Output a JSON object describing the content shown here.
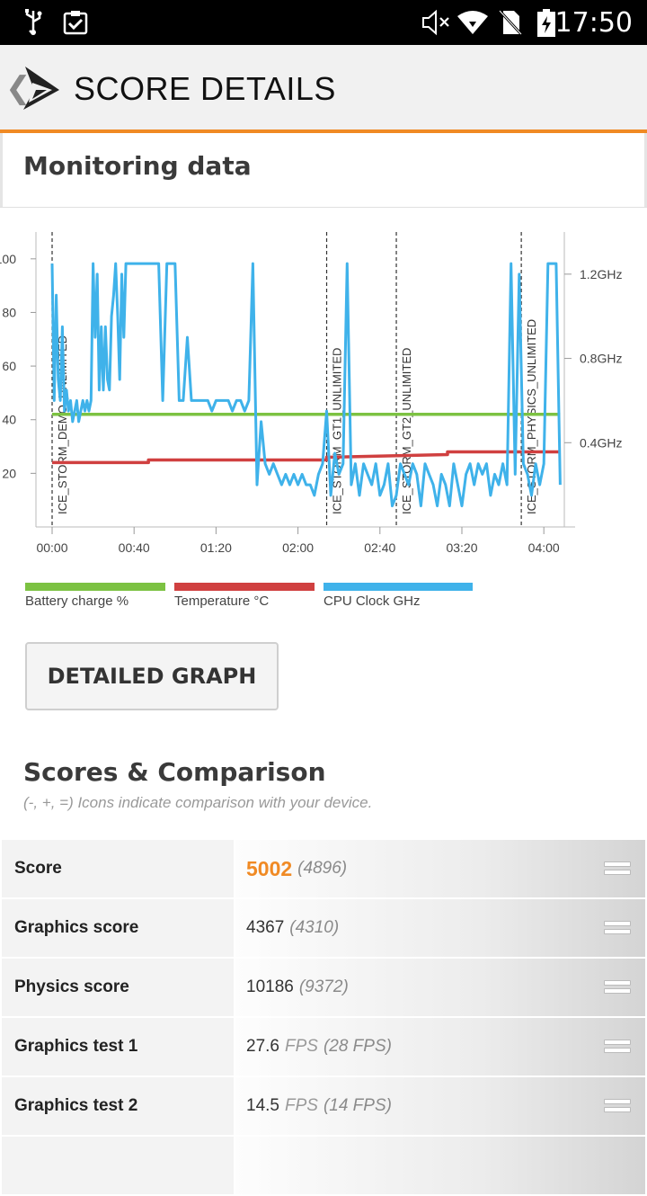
{
  "statusbar": {
    "time": "17:50",
    "icons": [
      "usb-icon",
      "clipboard-check-icon",
      "mute-icon",
      "wifi-icon",
      "no-sim-icon",
      "battery-charging-icon"
    ]
  },
  "appbar": {
    "title": "SCORE DETAILS",
    "back_icon": "chevron-left-icon",
    "logo_icon": "3dmark-logo-icon"
  },
  "monitoring": {
    "heading": "Monitoring data",
    "legend": [
      {
        "label": "Battery charge %",
        "color": "#7cc242"
      },
      {
        "label": "Temperature °C",
        "color": "#d04040"
      },
      {
        "label": "CPU Clock GHz",
        "color": "#3fb2ea"
      }
    ],
    "detailed_graph_button": "DETAILED GRAPH"
  },
  "chart_data": {
    "type": "line",
    "x_ticks": [
      "00:00",
      "00:40",
      "01:20",
      "02:00",
      "02:40",
      "03:20",
      "04:00"
    ],
    "x_range_seconds": [
      0,
      250
    ],
    "y_left_ticks": [
      "100",
      "80",
      "60",
      "40",
      "20"
    ],
    "y_left_range": [
      0,
      110
    ],
    "y_right_ticks": [
      "1.2GHz",
      "0.8GHz",
      "0.4GHz"
    ],
    "y_right_range": [
      0,
      1.4
    ],
    "markers": [
      {
        "t": 0,
        "label": "ICE_STORM_DEMO_UNLIMITED"
      },
      {
        "t": 134,
        "label": "ICE_STORM_GT1_UNLIMITED"
      },
      {
        "t": 168,
        "label": "ICE_STORM_GT2_UNLIMITED"
      },
      {
        "t": 229,
        "label": "ICE_STORM_PHYSICS_UNLIMITED"
      }
    ],
    "series": [
      {
        "name": "Battery charge %",
        "color": "#7cc242",
        "x": [
          0,
          248
        ],
        "y": [
          42,
          42
        ]
      },
      {
        "name": "Temperature °C",
        "color": "#d04040",
        "x": [
          0,
          47,
          47,
          134,
          134,
          193,
          193,
          248
        ],
        "y": [
          24,
          24,
          25,
          25,
          26,
          27,
          28,
          28
        ]
      },
      {
        "name": "CPU Clock GHz",
        "color": "#3fb2ea",
        "x": [
          0,
          1,
          2,
          3,
          4,
          5,
          6,
          7,
          8,
          9,
          10,
          11,
          12,
          13,
          14,
          15,
          16,
          17,
          18,
          19,
          20,
          21,
          22,
          23,
          24,
          25,
          26,
          27,
          28,
          29,
          30,
          31,
          32,
          33,
          34,
          35,
          36,
          37,
          38,
          39,
          40,
          41,
          42,
          44,
          46,
          48,
          50,
          52,
          54,
          56,
          58,
          60,
          62,
          64,
          66,
          68,
          70,
          72,
          74,
          76,
          78,
          80,
          82,
          84,
          86,
          88,
          90,
          92,
          94,
          96,
          98,
          100,
          102,
          104,
          106,
          108,
          110,
          112,
          114,
          116,
          118,
          120,
          122,
          124,
          126,
          128,
          130,
          132,
          134,
          136,
          138,
          140,
          142,
          144,
          146,
          148,
          150,
          152,
          154,
          156,
          158,
          160,
          162,
          164,
          166,
          168,
          170,
          172,
          174,
          176,
          178,
          180,
          182,
          184,
          186,
          188,
          190,
          192,
          194,
          196,
          198,
          200,
          202,
          204,
          206,
          208,
          210,
          212,
          214,
          216,
          218,
          220,
          222,
          224,
          226,
          228,
          230,
          232,
          234,
          236,
          238,
          240,
          242,
          244,
          246,
          248
        ],
        "y": [
          1.25,
          0.6,
          1.1,
          0.7,
          0.6,
          0.95,
          0.55,
          0.65,
          0.55,
          0.6,
          0.5,
          0.55,
          0.6,
          0.5,
          0.55,
          0.6,
          0.55,
          0.6,
          0.55,
          0.6,
          1.25,
          0.9,
          1.2,
          0.65,
          0.95,
          0.65,
          0.95,
          0.7,
          0.65,
          1.0,
          1.1,
          1.25,
          1.0,
          0.7,
          1.2,
          0.9,
          1.25,
          1.25,
          1.25,
          1.25,
          1.25,
          1.25,
          1.25,
          1.25,
          1.25,
          1.25,
          1.25,
          1.25,
          0.6,
          1.25,
          1.25,
          1.25,
          0.6,
          0.6,
          0.9,
          0.6,
          0.6,
          0.6,
          0.6,
          0.6,
          0.55,
          0.6,
          0.6,
          0.6,
          0.6,
          0.55,
          0.6,
          0.6,
          0.55,
          0.6,
          1.25,
          0.2,
          0.5,
          0.3,
          0.25,
          0.3,
          0.25,
          0.2,
          0.25,
          0.2,
          0.25,
          0.2,
          0.25,
          0.2,
          0.2,
          0.15,
          0.25,
          0.3,
          0.55,
          0.15,
          0.35,
          0.25,
          0.3,
          1.25,
          0.2,
          0.3,
          0.15,
          0.3,
          0.25,
          0.2,
          0.3,
          0.15,
          0.2,
          0.3,
          0.1,
          0.15,
          0.3,
          0.25,
          0.2,
          0.3,
          0.25,
          0.1,
          0.3,
          0.25,
          0.2,
          0.1,
          0.25,
          0.2,
          0.1,
          0.3,
          0.2,
          0.1,
          0.25,
          0.3,
          0.2,
          0.3,
          0.25,
          0.3,
          0.15,
          0.25,
          0.2,
          0.3,
          0.2,
          1.25,
          0.25,
          1.2,
          0.3,
          0.25,
          0.15,
          0.3,
          0.2,
          0.3,
          1.25,
          1.25,
          1.25,
          0.2
        ]
      }
    ],
    "xlabel": "",
    "ylabel": ""
  },
  "scores": {
    "heading": "Scores & Comparison",
    "note": "(-, +, =) Icons indicate comparison with your device.",
    "rows": [
      {
        "label": "Score",
        "value": "5002",
        "unit": "",
        "compare": "(4896)",
        "indicator": "equal-icon"
      },
      {
        "label": "Graphics score",
        "value": "4367",
        "unit": "",
        "compare": "(4310)",
        "indicator": "equal-icon"
      },
      {
        "label": "Physics score",
        "value": "10186",
        "unit": "",
        "compare": "(9372)",
        "indicator": "equal-icon"
      },
      {
        "label": "Graphics test 1",
        "value": "27.6",
        "unit": "FPS",
        "compare": "(28 FPS)",
        "indicator": "equal-icon"
      },
      {
        "label": "Graphics test 2",
        "value": "14.5",
        "unit": "FPS",
        "compare": "(14 FPS)",
        "indicator": "equal-icon"
      }
    ]
  }
}
